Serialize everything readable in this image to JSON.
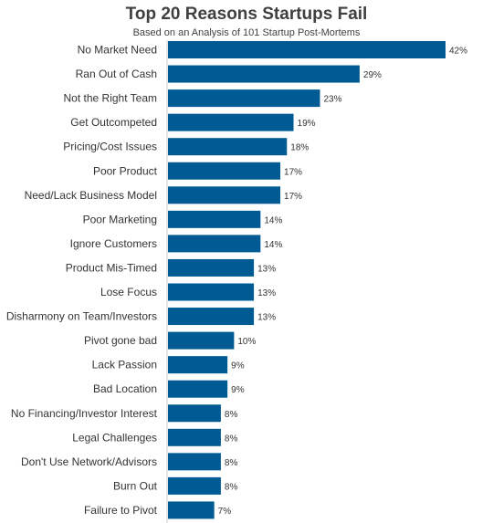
{
  "chart_data": {
    "type": "bar",
    "orientation": "horizontal",
    "title": "Top 20 Reasons Startups Fail",
    "subtitle": "Based on an Analysis of 101 Startup Post-Mortems",
    "xlabel": "",
    "ylabel": "",
    "xlim": [
      0,
      42
    ],
    "grid": false,
    "legend": "none",
    "value_suffix": "%",
    "bar_color": "#005b94",
    "categories": [
      "No Market Need",
      "Ran Out of Cash",
      "Not the Right Team",
      "Get Outcompeted",
      "Pricing/Cost Issues",
      "Poor Product",
      "Need/Lack Business Model",
      "Poor Marketing",
      "Ignore Customers",
      "Product Mis-Timed",
      "Lose Focus",
      "Disharmony on Team/Investors",
      "Pivot gone bad",
      "Lack Passion",
      "Bad Location",
      "No Financing/Investor Interest",
      "Legal Challenges",
      "Don't Use Network/Advisors",
      "Burn Out",
      "Failure to Pivot"
    ],
    "values": [
      42,
      29,
      23,
      19,
      18,
      17,
      17,
      14,
      14,
      13,
      13,
      13,
      10,
      9,
      9,
      8,
      8,
      8,
      8,
      7
    ]
  }
}
